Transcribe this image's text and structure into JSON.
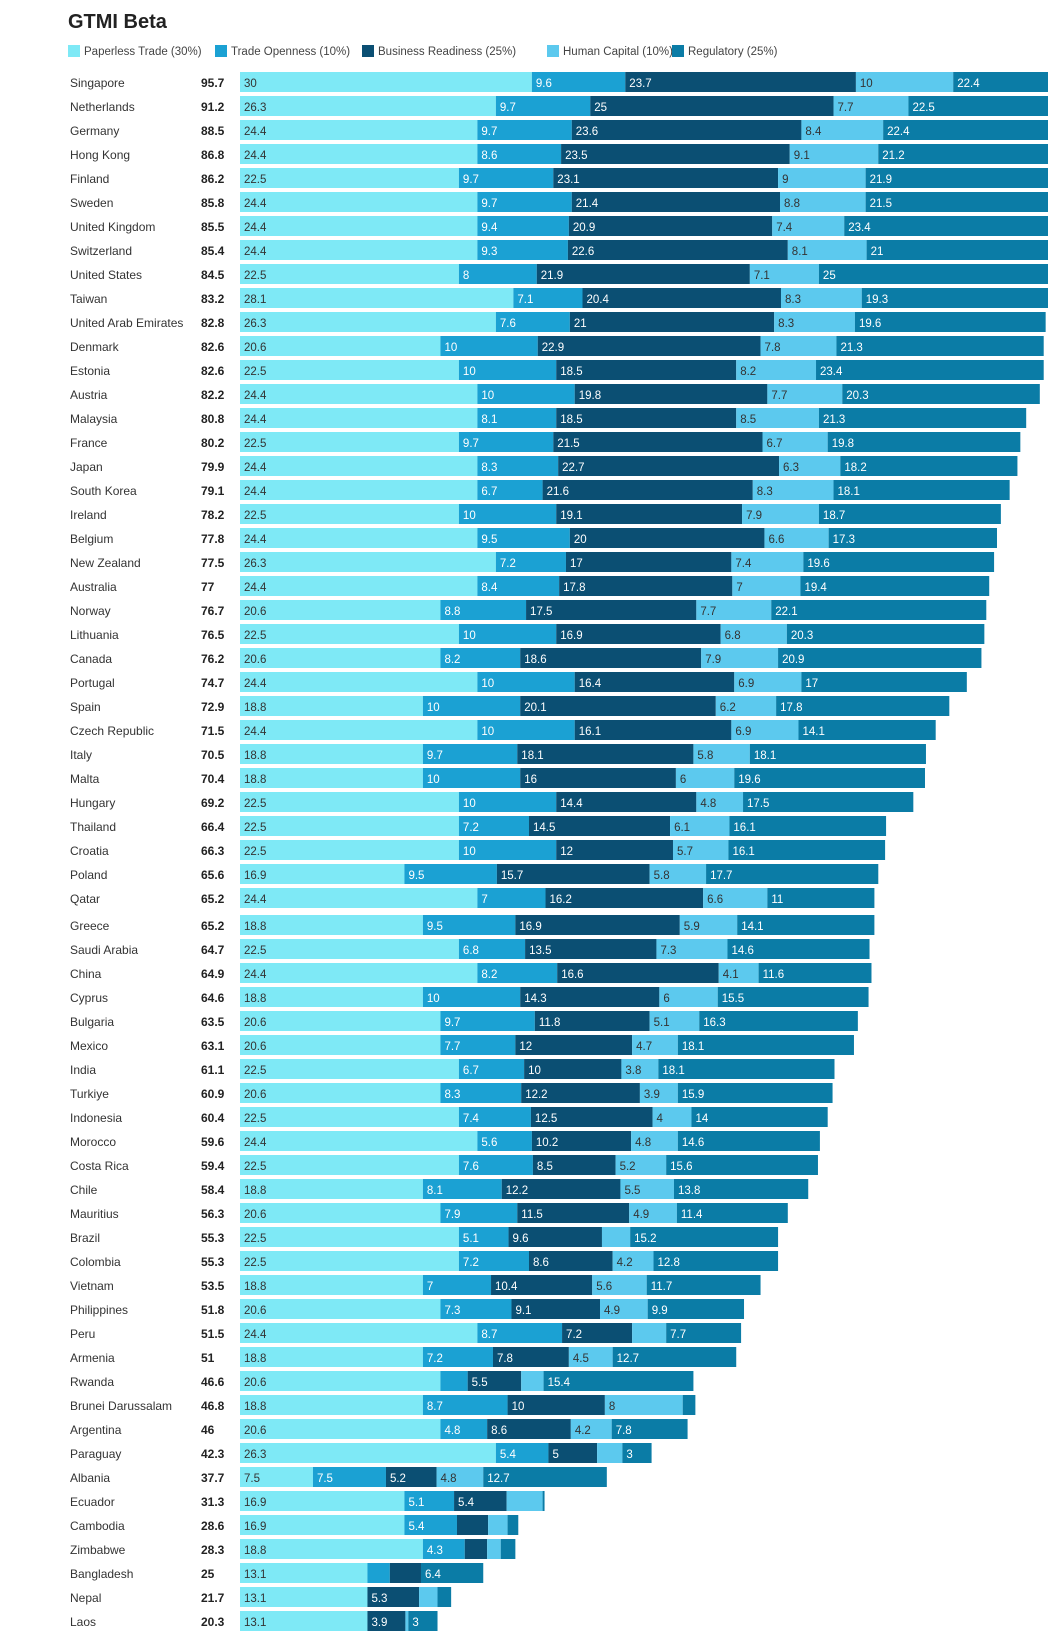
{
  "chart_data": {
    "type": "bar",
    "orientation": "horizontal",
    "stacked": true,
    "title": "GTMI Beta",
    "legend_position": "top-left",
    "grid": false,
    "series": [
      {
        "name": "Paperless Trade (30%)",
        "color": "#7ee9f6"
      },
      {
        "name": "Trade Openness (10%)",
        "color": "#1ba1d3"
      },
      {
        "name": "Business Readiness (25%)",
        "color": "#0b4f73"
      },
      {
        "name": "Human Capital (10%)",
        "color": "#5cc9ee"
      },
      {
        "name": "Regulatory (25%)",
        "color": "#0b7ca6"
      }
    ],
    "rows": [
      {
        "country": "Singapore",
        "total": "95.7",
        "values": [
          30,
          9.6,
          23.7,
          10,
          22.4
        ],
        "labels": [
          "30",
          "9.6",
          "23.7",
          "10",
          "22.4"
        ]
      },
      {
        "country": "Netherlands",
        "total": "91.2",
        "values": [
          26.3,
          9.7,
          25,
          7.7,
          22.5
        ],
        "labels": [
          "26.3",
          "9.7",
          "25",
          "7.7",
          "22.5"
        ]
      },
      {
        "country": "Germany",
        "total": "88.5",
        "values": [
          24.4,
          9.7,
          23.6,
          8.4,
          22.4
        ],
        "labels": [
          "24.4",
          "9.7",
          "23.6",
          "8.4",
          "22.4"
        ]
      },
      {
        "country": "Hong Kong",
        "total": "86.8",
        "values": [
          24.4,
          8.6,
          23.5,
          9.1,
          21.2
        ],
        "labels": [
          "24.4",
          "8.6",
          "23.5",
          "9.1",
          "21.2"
        ]
      },
      {
        "country": "Finland",
        "total": "86.2",
        "values": [
          22.5,
          9.7,
          23.1,
          9,
          21.9
        ],
        "labels": [
          "22.5",
          "9.7",
          "23.1",
          "9",
          "21.9"
        ]
      },
      {
        "country": "Sweden",
        "total": "85.8",
        "values": [
          24.4,
          9.7,
          21.4,
          8.8,
          21.5
        ],
        "labels": [
          "24.4",
          "9.7",
          "21.4",
          "8.8",
          "21.5"
        ]
      },
      {
        "country": "United Kingdom",
        "total": "85.5",
        "values": [
          24.4,
          9.4,
          20.9,
          7.4,
          23.4
        ],
        "labels": [
          "24.4",
          "9.4",
          "20.9",
          "7.4",
          "23.4"
        ]
      },
      {
        "country": "Switzerland",
        "total": "85.4",
        "values": [
          24.4,
          9.3,
          22.6,
          8.1,
          21
        ],
        "labels": [
          "24.4",
          "9.3",
          "22.6",
          "8.1",
          "21"
        ]
      },
      {
        "country": "United States",
        "total": "84.5",
        "values": [
          22.5,
          8,
          21.9,
          7.1,
          25
        ],
        "labels": [
          "22.5",
          "8",
          "21.9",
          "7.1",
          "25"
        ]
      },
      {
        "country": "Taiwan",
        "total": "83.2",
        "values": [
          28.1,
          7.1,
          20.4,
          8.3,
          19.3
        ],
        "labels": [
          "28.1",
          "7.1",
          "20.4",
          "8.3",
          "19.3"
        ]
      },
      {
        "country": "United Arab Emirates",
        "total": "82.8",
        "values": [
          26.3,
          7.6,
          21,
          8.3,
          19.6
        ],
        "labels": [
          "26.3",
          "7.6",
          "21",
          "8.3",
          "19.6"
        ]
      },
      {
        "country": "Denmark",
        "total": "82.6",
        "values": [
          20.6,
          10,
          22.9,
          7.8,
          21.3
        ],
        "labels": [
          "20.6",
          "10",
          "22.9",
          "7.8",
          "21.3"
        ]
      },
      {
        "country": "Estonia",
        "total": "82.6",
        "values": [
          22.5,
          10,
          18.5,
          8.2,
          23.4
        ],
        "labels": [
          "22.5",
          "10",
          "18.5",
          "8.2",
          "23.4"
        ]
      },
      {
        "country": "Austria",
        "total": "82.2",
        "values": [
          24.4,
          10,
          19.8,
          7.7,
          20.3
        ],
        "labels": [
          "24.4",
          "10",
          "19.8",
          "7.7",
          "20.3"
        ]
      },
      {
        "country": "Malaysia",
        "total": "80.8",
        "values": [
          24.4,
          8.1,
          18.5,
          8.5,
          21.3
        ],
        "labels": [
          "24.4",
          "8.1",
          "18.5",
          "8.5",
          "21.3"
        ]
      },
      {
        "country": "France",
        "total": "80.2",
        "values": [
          22.5,
          9.7,
          21.5,
          6.7,
          19.8
        ],
        "labels": [
          "22.5",
          "9.7",
          "21.5",
          "6.7",
          "19.8"
        ]
      },
      {
        "country": "Japan",
        "total": "79.9",
        "values": [
          24.4,
          8.3,
          22.7,
          6.3,
          18.2
        ],
        "labels": [
          "24.4",
          "8.3",
          "22.7",
          "6.3",
          "18.2"
        ]
      },
      {
        "country": "South Korea",
        "total": "79.1",
        "values": [
          24.4,
          6.7,
          21.6,
          8.3,
          18.1
        ],
        "labels": [
          "24.4",
          "6.7",
          "21.6",
          "8.3",
          "18.1"
        ]
      },
      {
        "country": "Ireland",
        "total": "78.2",
        "values": [
          22.5,
          10,
          19.1,
          7.9,
          18.7
        ],
        "labels": [
          "22.5",
          "10",
          "19.1",
          "7.9",
          "18.7"
        ]
      },
      {
        "country": "Belgium",
        "total": "77.8",
        "values": [
          24.4,
          9.5,
          20,
          6.6,
          17.3
        ],
        "labels": [
          "24.4",
          "9.5",
          "20",
          "6.6",
          "17.3"
        ]
      },
      {
        "country": "New Zealand",
        "total": "77.5",
        "values": [
          26.3,
          7.2,
          17,
          7.4,
          19.6
        ],
        "labels": [
          "26.3",
          "7.2",
          "17",
          "7.4",
          "19.6"
        ]
      },
      {
        "country": "Australia",
        "total": "77",
        "values": [
          24.4,
          8.4,
          17.8,
          7,
          19.4
        ],
        "labels": [
          "24.4",
          "8.4",
          "17.8",
          "7",
          "19.4"
        ]
      },
      {
        "country": "Norway",
        "total": "76.7",
        "values": [
          20.6,
          8.8,
          17.5,
          7.7,
          22.1
        ],
        "labels": [
          "20.6",
          "8.8",
          "17.5",
          "7.7",
          "22.1"
        ]
      },
      {
        "country": "Lithuania",
        "total": "76.5",
        "values": [
          22.5,
          10,
          16.9,
          6.8,
          20.3
        ],
        "labels": [
          "22.5",
          "10",
          "16.9",
          "6.8",
          "20.3"
        ]
      },
      {
        "country": "Canada",
        "total": "76.2",
        "values": [
          20.6,
          8.2,
          18.6,
          7.9,
          20.9
        ],
        "labels": [
          "20.6",
          "8.2",
          "18.6",
          "7.9",
          "20.9"
        ]
      },
      {
        "country": "Portugal",
        "total": "74.7",
        "values": [
          24.4,
          10,
          16.4,
          6.9,
          17
        ],
        "labels": [
          "24.4",
          "10",
          "16.4",
          "6.9",
          "17"
        ]
      },
      {
        "country": "Spain",
        "total": "72.9",
        "values": [
          18.8,
          10,
          20.1,
          6.2,
          17.8
        ],
        "labels": [
          "18.8",
          "10",
          "20.1",
          "6.2",
          "17.8"
        ]
      },
      {
        "country": "Czech Republic",
        "total": "71.5",
        "values": [
          24.4,
          10,
          16.1,
          6.9,
          14.1
        ],
        "labels": [
          "24.4",
          "10",
          "16.1",
          "6.9",
          "14.1"
        ]
      },
      {
        "country": "Italy",
        "total": "70.5",
        "values": [
          18.8,
          9.7,
          18.1,
          5.8,
          18.1
        ],
        "labels": [
          "18.8",
          "9.7",
          "18.1",
          "5.8",
          "18.1"
        ]
      },
      {
        "country": "Malta",
        "total": "70.4",
        "values": [
          18.8,
          10,
          16,
          6,
          19.6
        ],
        "labels": [
          "18.8",
          "10",
          "16",
          "6",
          "19.6"
        ]
      },
      {
        "country": "Hungary",
        "total": "69.2",
        "values": [
          22.5,
          10,
          14.4,
          4.8,
          17.5
        ],
        "labels": [
          "22.5",
          "10",
          "14.4",
          "4.8",
          "17.5"
        ]
      },
      {
        "country": "Thailand",
        "total": "66.4",
        "values": [
          22.5,
          7.2,
          14.5,
          6.1,
          16.1
        ],
        "labels": [
          "22.5",
          "7.2",
          "14.5",
          "6.1",
          "16.1"
        ]
      },
      {
        "country": "Croatia",
        "total": "66.3",
        "values": [
          22.5,
          10,
          12,
          5.7,
          16.1
        ],
        "labels": [
          "22.5",
          "10",
          "12",
          "5.7",
          "16.1"
        ]
      },
      {
        "country": "Poland",
        "total": "65.6",
        "values": [
          16.9,
          9.5,
          15.7,
          5.8,
          17.7
        ],
        "labels": [
          "16.9",
          "9.5",
          "15.7",
          "5.8",
          "17.7"
        ]
      },
      {
        "country": "Qatar",
        "total": "65.2",
        "values": [
          24.4,
          7,
          16.2,
          6.6,
          11
        ],
        "labels": [
          "24.4",
          "7",
          "16.2",
          "6.6",
          "11"
        ]
      },
      {
        "country": "Greece",
        "total": "65.2",
        "values": [
          18.8,
          9.5,
          16.9,
          5.9,
          14.1
        ],
        "labels": [
          "18.8",
          "9.5",
          "16.9",
          "5.9",
          "14.1"
        ]
      },
      {
        "country": "Saudi Arabia",
        "total": "64.7",
        "values": [
          22.5,
          6.8,
          13.5,
          7.3,
          14.6
        ],
        "labels": [
          "22.5",
          "6.8",
          "13.5",
          "7.3",
          "14.6"
        ]
      },
      {
        "country": "China",
        "total": "64.9",
        "values": [
          24.4,
          8.2,
          16.6,
          4.1,
          11.6
        ],
        "labels": [
          "24.4",
          "8.2",
          "16.6",
          "4.1",
          "11.6"
        ]
      },
      {
        "country": "Cyprus",
        "total": "64.6",
        "values": [
          18.8,
          10,
          14.3,
          6,
          15.5
        ],
        "labels": [
          "18.8",
          "10",
          "14.3",
          "6",
          "15.5"
        ]
      },
      {
        "country": "Bulgaria",
        "total": "63.5",
        "values": [
          20.6,
          9.7,
          11.8,
          5.1,
          16.3
        ],
        "labels": [
          "20.6",
          "9.7",
          "11.8",
          "5.1",
          "16.3"
        ]
      },
      {
        "country": "Mexico",
        "total": "63.1",
        "values": [
          20.6,
          7.7,
          12,
          4.7,
          18.1
        ],
        "labels": [
          "20.6",
          "7.7",
          "12",
          "4.7",
          "18.1"
        ]
      },
      {
        "country": "India",
        "total": "61.1",
        "values": [
          22.5,
          6.7,
          10,
          3.8,
          18.1
        ],
        "labels": [
          "22.5",
          "6.7",
          "10",
          "3.8",
          "18.1"
        ]
      },
      {
        "country": "Turkiye",
        "total": "60.9",
        "values": [
          20.6,
          8.3,
          12.2,
          3.9,
          15.9
        ],
        "labels": [
          "20.6",
          "8.3",
          "12.2",
          "3.9",
          "15.9"
        ]
      },
      {
        "country": "Indonesia",
        "total": "60.4",
        "values": [
          22.5,
          7.4,
          12.5,
          4,
          14
        ],
        "labels": [
          "22.5",
          "7.4",
          "12.5",
          "4",
          "14"
        ]
      },
      {
        "country": "Morocco",
        "total": "59.6",
        "values": [
          24.4,
          5.6,
          10.2,
          4.8,
          14.6
        ],
        "labels": [
          "24.4",
          "5.6",
          "10.2",
          "4.8",
          "14.6"
        ]
      },
      {
        "country": "Costa Rica",
        "total": "59.4",
        "values": [
          22.5,
          7.6,
          8.5,
          5.2,
          15.6
        ],
        "labels": [
          "22.5",
          "7.6",
          "8.5",
          "5.2",
          "15.6"
        ]
      },
      {
        "country": "Chile",
        "total": "58.4",
        "values": [
          18.8,
          8.1,
          12.2,
          5.5,
          13.8
        ],
        "labels": [
          "18.8",
          "8.1",
          "12.2",
          "5.5",
          "13.8"
        ]
      },
      {
        "country": "Mauritius",
        "total": "56.3",
        "values": [
          20.6,
          7.9,
          11.5,
          4.9,
          11.4
        ],
        "labels": [
          "20.6",
          "7.9",
          "11.5",
          "4.9",
          "11.4"
        ]
      },
      {
        "country": "Brazil",
        "total": "55.3",
        "values": [
          22.5,
          5.1,
          9.6,
          2.9,
          15.2
        ],
        "labels": [
          "22.5",
          "5.1",
          "9.6",
          "",
          "15.2"
        ]
      },
      {
        "country": "Colombia",
        "total": "55.3",
        "values": [
          22.5,
          7.2,
          8.6,
          4.2,
          12.8
        ],
        "labels": [
          "22.5",
          "7.2",
          "8.6",
          "4.2",
          "12.8"
        ]
      },
      {
        "country": "Vietnam",
        "total": "53.5",
        "values": [
          18.8,
          7,
          10.4,
          5.6,
          11.7
        ],
        "labels": [
          "18.8",
          "7",
          "10.4",
          "5.6",
          "11.7"
        ]
      },
      {
        "country": "Philippines",
        "total": "51.8",
        "values": [
          20.6,
          7.3,
          9.1,
          4.9,
          9.9
        ],
        "labels": [
          "20.6",
          "7.3",
          "9.1",
          "4.9",
          "9.9"
        ]
      },
      {
        "country": "Peru",
        "total": "51.5",
        "values": [
          24.4,
          8.7,
          7.2,
          3.5,
          7.7
        ],
        "labels": [
          "24.4",
          "8.7",
          "7.2",
          "",
          "7.7"
        ]
      },
      {
        "country": "Armenia",
        "total": "51",
        "values": [
          18.8,
          7.2,
          7.8,
          4.5,
          12.7
        ],
        "labels": [
          "18.8",
          "7.2",
          "7.8",
          "4.5",
          "12.7"
        ]
      },
      {
        "country": "Rwanda",
        "total": "46.6",
        "values": [
          20.6,
          2.8,
          5.5,
          2.3,
          15.4
        ],
        "labels": [
          "20.6",
          "",
          "5.5",
          "",
          "15.4"
        ]
      },
      {
        "country": "Brunei Darussalam",
        "total": "46.8",
        "values": [
          18.8,
          8.7,
          10,
          8,
          1.3
        ],
        "labels": [
          "18.8",
          "8.7",
          "10",
          "8",
          ""
        ]
      },
      {
        "country": "Argentina",
        "total": "46",
        "values": [
          20.6,
          4.8,
          8.6,
          4.2,
          7.8
        ],
        "labels": [
          "20.6",
          "4.8",
          "8.6",
          "4.2",
          "7.8"
        ]
      },
      {
        "country": "Paraguay",
        "total": "42.3",
        "values": [
          26.3,
          5.4,
          5,
          2.6,
          3
        ],
        "labels": [
          "26.3",
          "5.4",
          "5",
          "",
          "3"
        ]
      },
      {
        "country": "Albania",
        "total": "37.7",
        "values": [
          7.5,
          7.5,
          5.2,
          4.8,
          12.7
        ],
        "labels": [
          "7.5",
          "7.5",
          "5.2",
          "4.8",
          "12.7"
        ]
      },
      {
        "country": "Ecuador",
        "total": "31.3",
        "values": [
          16.9,
          5.1,
          5.4,
          3.7,
          0.2
        ],
        "labels": [
          "16.9",
          "5.1",
          "5.4",
          "",
          ""
        ]
      },
      {
        "country": "Cambodia",
        "total": "28.6",
        "values": [
          16.9,
          5.4,
          3.2,
          2,
          1.1
        ],
        "labels": [
          "16.9",
          "5.4",
          "",
          "",
          ""
        ]
      },
      {
        "country": "Zimbabwe",
        "total": "28.3",
        "values": [
          18.8,
          4.3,
          2.3,
          1.4,
          1.5
        ],
        "labels": [
          "18.8",
          "4.3",
          "",
          "",
          ""
        ]
      },
      {
        "country": "Bangladesh",
        "total": "25",
        "values": [
          13.1,
          2.3,
          3.2,
          0,
          6.4
        ],
        "labels": [
          "13.1",
          "",
          "",
          "",
          "6.4"
        ]
      },
      {
        "country": "Nepal",
        "total": "21.7",
        "values": [
          13.1,
          0,
          5.3,
          1.9,
          1.4
        ],
        "labels": [
          "13.1",
          "",
          "5.3",
          "",
          ""
        ]
      },
      {
        "country": "Laos",
        "total": "20.3",
        "values": [
          13.1,
          0,
          3.9,
          0.3,
          3
        ],
        "labels": [
          "13.1",
          "",
          "3.9",
          "",
          "3"
        ]
      }
    ]
  }
}
